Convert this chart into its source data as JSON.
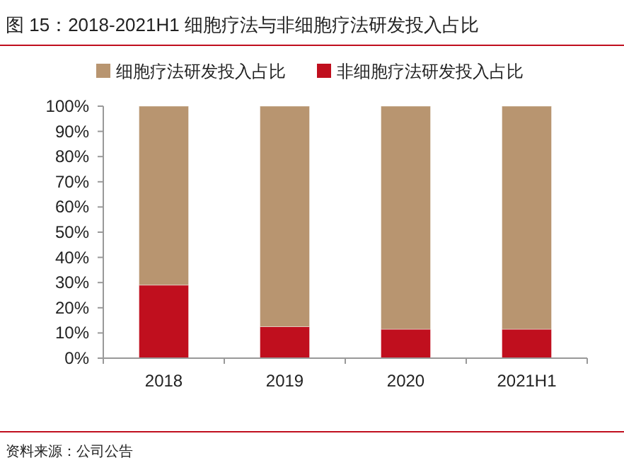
{
  "chart_data": {
    "type": "bar",
    "title": "图 15：2018-2021H1 细胞疗法与非细胞疗法研发投入占比",
    "categories": [
      "2018",
      "2019",
      "2020",
      "2021H1"
    ],
    "stacked": true,
    "series": [
      {
        "name": "非细胞疗法研发投入占比",
        "color": "#c00f1e",
        "values": [
          29,
          12.5,
          11.5,
          11.5
        ]
      },
      {
        "name": "细胞疗法研发投入占比",
        "color": "#b89570",
        "values": [
          71,
          87.5,
          88.5,
          88.5
        ]
      }
    ],
    "ylim": [
      0,
      100
    ],
    "yticks": [
      {
        "value": 0,
        "label": "0%"
      },
      {
        "value": 10,
        "label": "10%"
      },
      {
        "value": 20,
        "label": "20%"
      },
      {
        "value": 30,
        "label": "30%"
      },
      {
        "value": 40,
        "label": "40%"
      },
      {
        "value": 50,
        "label": "50%"
      },
      {
        "value": 60,
        "label": "60%"
      },
      {
        "value": 70,
        "label": "70%"
      },
      {
        "value": 80,
        "label": "80%"
      },
      {
        "value": 90,
        "label": "90%"
      },
      {
        "value": 100,
        "label": "100%"
      }
    ],
    "legend": "top",
    "annotations": [
      "资料来源：公司公告"
    ]
  }
}
